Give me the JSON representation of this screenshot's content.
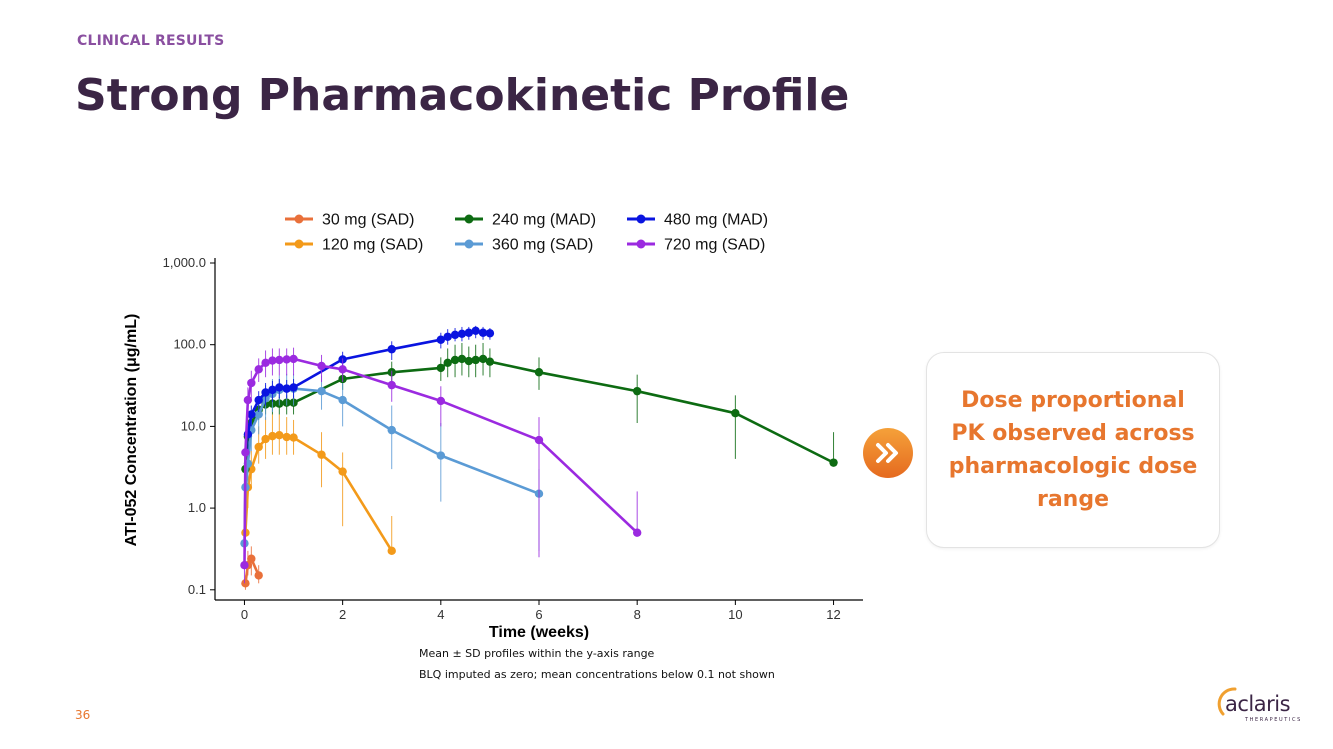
{
  "header": {
    "section": "CLINICAL RESULTS",
    "title": "Strong Pharmacokinetic Profile"
  },
  "notes": {
    "line1": "Mean ± SD profiles within the y-axis range",
    "line2": "BLQ imputed as zero; mean concentrations below 0.1 not shown"
  },
  "callout": {
    "text": "Dose proportional PK observed across pharmacologic dose range",
    "icon": "double-chevron-right-icon",
    "accent": "#e7762e"
  },
  "footer": {
    "page_number": "36",
    "logo_text": "aclaris",
    "logo_subtext": "THERAPEUTICS"
  },
  "chart_data": {
    "type": "line",
    "title": "",
    "xlabel": "Time (weeks)",
    "ylabel": "ATI-052 Concentration (μg/mL)",
    "yscale": "log",
    "xlim": [
      -0.6,
      12.6
    ],
    "ylim": [
      0.075,
      1000
    ],
    "x_ticks": [
      0,
      2,
      4,
      6,
      8,
      10,
      12
    ],
    "y_ticks": [
      0.1,
      1,
      10,
      100,
      1000
    ],
    "y_tick_labels": [
      "0.1",
      "1.0",
      "10.0",
      "100.0",
      "1,000.0"
    ],
    "grid": false,
    "legend": "top",
    "series": [
      {
        "name": "30 mg (SAD)",
        "color": "#e9703a",
        "x": [
          0.02,
          0.07,
          0.14,
          0.29
        ],
        "y": [
          0.12,
          0.2,
          0.24,
          0.15
        ],
        "yerr_low": [
          0.1,
          0.15,
          0.15,
          0.12
        ],
        "yerr_high": [
          0.15,
          0.3,
          0.34,
          0.2
        ]
      },
      {
        "name": "120 mg (SAD)",
        "color": "#f39a1a",
        "x": [
          0.02,
          0.07,
          0.14,
          0.29,
          0.43,
          0.57,
          0.71,
          0.86,
          1.0,
          1.57,
          2.0,
          3.0
        ],
        "y": [
          0.5,
          1.8,
          3.0,
          5.6,
          7.0,
          7.6,
          7.8,
          7.4,
          7.3,
          4.5,
          2.8,
          0.3
        ],
        "yerr_low": [
          0.3,
          1.0,
          1.8,
          3.5,
          4.0,
          4.5,
          4.5,
          4.5,
          4.5,
          1.8,
          0.6,
          0.3
        ],
        "yerr_high": [
          0.8,
          3.0,
          5.0,
          10,
          13,
          14,
          14,
          13,
          12,
          8.5,
          4.8,
          0.8
        ]
      },
      {
        "name": "240 mg (MAD)",
        "color": "#0d6b12",
        "x": [
          0.02,
          0.07,
          0.14,
          0.29,
          0.43,
          0.57,
          0.71,
          0.86,
          1.0,
          2.0,
          3.0,
          4.0,
          4.14,
          4.29,
          4.43,
          4.57,
          4.71,
          4.86,
          5.0,
          6.0,
          8.0,
          10.0,
          12.0
        ],
        "y": [
          3.0,
          7.5,
          11,
          16,
          18.5,
          19,
          19,
          19.5,
          19.5,
          38,
          46,
          52,
          60,
          65,
          67,
          63,
          65,
          67,
          62,
          46,
          27,
          14.5,
          3.6
        ],
        "yerr_low": [
          2.0,
          5.0,
          8.0,
          12,
          14,
          14,
          14,
          14,
          14,
          28,
          32,
          36,
          40,
          40,
          42,
          40,
          40,
          42,
          40,
          28,
          11,
          4.0,
          3.6
        ],
        "yerr_high": [
          4.0,
          10,
          14,
          20,
          23,
          23,
          23,
          24,
          24,
          48,
          62,
          70,
          90,
          100,
          105,
          95,
          100,
          105,
          90,
          70,
          43,
          24,
          8.5
        ]
      },
      {
        "name": "360 mg (SAD)",
        "color": "#5b9bd5",
        "x": [
          0.0,
          0.02,
          0.07,
          0.14,
          0.29,
          0.43,
          0.57,
          0.71,
          0.86,
          1.0,
          1.57,
          2.0,
          3.0,
          4.0,
          6.0
        ],
        "y": [
          0.37,
          1.8,
          3.5,
          9.0,
          14,
          22,
          25,
          28,
          29,
          29,
          27,
          21,
          9.0,
          4.4,
          1.5
        ],
        "yerr_low": [
          0.2,
          1.0,
          2.0,
          5.0,
          8.0,
          12,
          15,
          18,
          18,
          18,
          16,
          10,
          3.0,
          1.2,
          0.3
        ],
        "yerr_high": [
          0.6,
          2.5,
          5.0,
          13,
          20,
          32,
          38,
          42,
          44,
          44,
          42,
          34,
          18,
          11,
          3.0
        ]
      },
      {
        "name": "480 mg (MAD)",
        "color": "#0a14e0",
        "x": [
          0.07,
          0.14,
          0.29,
          0.43,
          0.57,
          0.71,
          0.86,
          1.0,
          2.0,
          3.0,
          4.0,
          4.14,
          4.29,
          4.43,
          4.57,
          4.71,
          4.86,
          5.0
        ],
        "y": [
          8.0,
          14,
          21,
          26,
          28,
          30,
          29,
          30,
          66,
          88,
          115,
          125,
          132,
          136,
          140,
          148,
          140,
          138
        ],
        "yerr_low": [
          5.0,
          10,
          15,
          18,
          20,
          22,
          22,
          22,
          50,
          65,
          90,
          100,
          110,
          110,
          115,
          120,
          115,
          115
        ],
        "yerr_high": [
          11,
          18,
          27,
          34,
          36,
          38,
          37,
          38,
          82,
          110,
          140,
          155,
          160,
          165,
          165,
          170,
          165,
          160
        ]
      },
      {
        "name": "720 mg (SAD)",
        "color": "#9b2ae0",
        "x": [
          0.0,
          0.02,
          0.07,
          0.14,
          0.29,
          0.43,
          0.57,
          0.71,
          0.86,
          1.0,
          1.57,
          2.0,
          3.0,
          4.0,
          6.0,
          8.0
        ],
        "y": [
          0.2,
          4.8,
          21,
          34,
          50,
          60,
          64,
          65,
          66,
          67,
          55,
          50,
          32,
          20.5,
          6.8,
          0.5
        ],
        "yerr_low": [
          0.12,
          3.0,
          12,
          22,
          35,
          40,
          42,
          42,
          42,
          42,
          35,
          35,
          20,
          10,
          0.25,
          0.5
        ],
        "yerr_high": [
          0.3,
          7.0,
          30,
          48,
          68,
          85,
          90,
          90,
          90,
          92,
          75,
          68,
          48,
          31,
          13,
          1.6
        ]
      }
    ]
  }
}
